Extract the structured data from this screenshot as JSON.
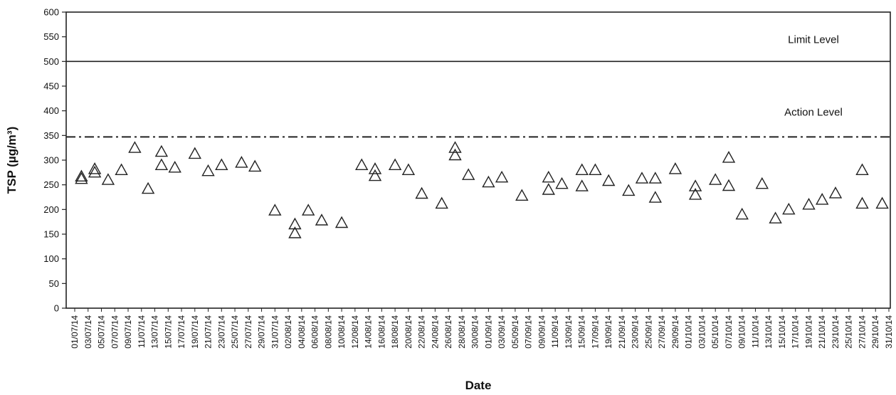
{
  "chart_data": {
    "type": "scatter",
    "title": "",
    "xlabel": "Date",
    "ylabel": "TSP (µg/m³)",
    "ylim": [
      0,
      600
    ],
    "yticks": [
      0,
      50,
      100,
      150,
      200,
      250,
      300,
      350,
      400,
      450,
      500,
      550,
      600
    ],
    "xlim": [
      "01/07/14",
      "31/10/14"
    ],
    "xticks": [
      "01/07/14",
      "03/07/14",
      "05/07/14",
      "07/07/14",
      "09/07/14",
      "11/07/14",
      "13/07/14",
      "15/07/14",
      "17/07/14",
      "19/07/14",
      "21/07/14",
      "23/07/14",
      "25/07/14",
      "27/07/14",
      "29/07/14",
      "31/07/14",
      "02/08/14",
      "04/08/14",
      "06/08/14",
      "08/08/14",
      "10/08/14",
      "12/08/14",
      "14/08/14",
      "16/08/14",
      "18/08/14",
      "20/08/14",
      "22/08/14",
      "24/08/14",
      "26/08/14",
      "28/08/14",
      "30/08/14",
      "01/09/14",
      "03/09/14",
      "05/09/14",
      "07/09/14",
      "09/09/14",
      "11/09/14",
      "13/09/14",
      "15/09/14",
      "17/09/14",
      "19/09/14",
      "21/09/14",
      "23/09/14",
      "25/09/14",
      "27/09/14",
      "29/09/14",
      "01/10/14",
      "03/10/14",
      "05/10/14",
      "07/10/14",
      "09/10/14",
      "11/10/14",
      "13/10/14",
      "15/10/14",
      "17/10/14",
      "19/10/14",
      "21/10/14",
      "23/10/14",
      "25/10/14",
      "27/10/14",
      "29/10/14",
      "31/10/14"
    ],
    "grid": false,
    "marker": "open-triangle",
    "reference_lines": [
      {
        "name": "Limit Level",
        "y": 500,
        "style": "solid"
      },
      {
        "name": "Action Level",
        "y": 347,
        "style": "dash-dot"
      }
    ],
    "points": [
      {
        "x": "02/07/14",
        "y": 262
      },
      {
        "x": "02/07/14",
        "y": 267
      },
      {
        "x": "04/07/14",
        "y": 275
      },
      {
        "x": "04/07/14",
        "y": 282
      },
      {
        "x": "06/07/14",
        "y": 260
      },
      {
        "x": "08/07/14",
        "y": 280
      },
      {
        "x": "10/07/14",
        "y": 325
      },
      {
        "x": "12/07/14",
        "y": 242
      },
      {
        "x": "14/07/14",
        "y": 317
      },
      {
        "x": "14/07/14",
        "y": 290
      },
      {
        "x": "16/07/14",
        "y": 285
      },
      {
        "x": "19/07/14",
        "y": 313
      },
      {
        "x": "21/07/14",
        "y": 278
      },
      {
        "x": "23/07/14",
        "y": 290
      },
      {
        "x": "26/07/14",
        "y": 295
      },
      {
        "x": "28/07/14",
        "y": 287
      },
      {
        "x": "31/07/14",
        "y": 198
      },
      {
        "x": "03/08/14",
        "y": 170
      },
      {
        "x": "03/08/14",
        "y": 152
      },
      {
        "x": "05/08/14",
        "y": 198
      },
      {
        "x": "07/08/14",
        "y": 178
      },
      {
        "x": "10/08/14",
        "y": 173
      },
      {
        "x": "13/08/14",
        "y": 290
      },
      {
        "x": "15/08/14",
        "y": 282
      },
      {
        "x": "15/08/14",
        "y": 268
      },
      {
        "x": "18/08/14",
        "y": 290
      },
      {
        "x": "20/08/14",
        "y": 280
      },
      {
        "x": "22/08/14",
        "y": 232
      },
      {
        "x": "25/08/14",
        "y": 212
      },
      {
        "x": "27/08/14",
        "y": 325
      },
      {
        "x": "27/08/14",
        "y": 310
      },
      {
        "x": "29/08/14",
        "y": 270
      },
      {
        "x": "01/09/14",
        "y": 255
      },
      {
        "x": "03/09/14",
        "y": 265
      },
      {
        "x": "06/09/14",
        "y": 228
      },
      {
        "x": "10/09/14",
        "y": 265
      },
      {
        "x": "10/09/14",
        "y": 240
      },
      {
        "x": "12/09/14",
        "y": 252
      },
      {
        "x": "15/09/14",
        "y": 280
      },
      {
        "x": "15/09/14",
        "y": 247
      },
      {
        "x": "17/09/14",
        "y": 280
      },
      {
        "x": "19/09/14",
        "y": 258
      },
      {
        "x": "22/09/14",
        "y": 238
      },
      {
        "x": "24/09/14",
        "y": 263
      },
      {
        "x": "26/09/14",
        "y": 263
      },
      {
        "x": "26/09/14",
        "y": 224
      },
      {
        "x": "29/09/14",
        "y": 282
      },
      {
        "x": "02/10/14",
        "y": 247
      },
      {
        "x": "02/10/14",
        "y": 230
      },
      {
        "x": "05/10/14",
        "y": 260
      },
      {
        "x": "07/10/14",
        "y": 305
      },
      {
        "x": "07/10/14",
        "y": 248
      },
      {
        "x": "09/10/14",
        "y": 190
      },
      {
        "x": "12/10/14",
        "y": 252
      },
      {
        "x": "14/10/14",
        "y": 182
      },
      {
        "x": "16/10/14",
        "y": 200
      },
      {
        "x": "19/10/14",
        "y": 210
      },
      {
        "x": "21/10/14",
        "y": 220
      },
      {
        "x": "23/10/14",
        "y": 233
      },
      {
        "x": "27/10/14",
        "y": 280
      },
      {
        "x": "27/10/14",
        "y": 212
      },
      {
        "x": "30/10/14",
        "y": 212
      }
    ]
  },
  "colors": {
    "axis": "#222222",
    "marker_stroke": "#222222",
    "background": "#ffffff"
  }
}
